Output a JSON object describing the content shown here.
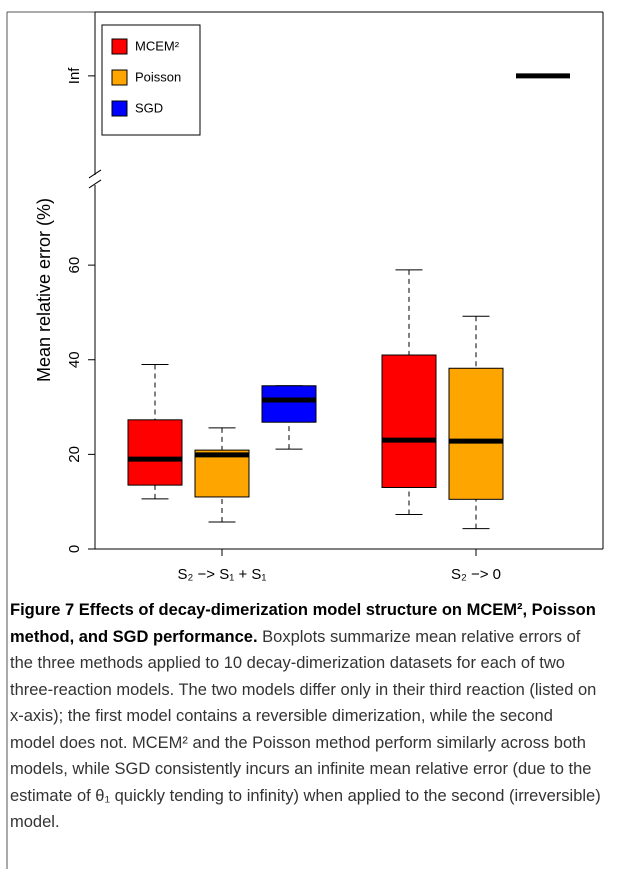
{
  "chart_data": {
    "type": "boxplot",
    "ylabel": "Mean relative error (%)",
    "categories": [
      "S₂ −> S₁ + S₁",
      "S₂ −> 0"
    ],
    "series": [
      {
        "name": "MCEM²",
        "color": "#ff0000",
        "boxes": [
          [
            10.6,
            13.5,
            19,
            27.3,
            39
          ],
          [
            7.3,
            13,
            23,
            41,
            59
          ]
        ]
      },
      {
        "name": "Poisson",
        "color": "#ffa500",
        "boxes": [
          [
            5.7,
            11,
            19.9,
            20.9,
            25.6
          ],
          [
            4.3,
            10.5,
            22.8,
            38.2,
            49.2
          ]
        ]
      },
      {
        "name": "SGD",
        "color": "#0000ff",
        "boxes": [
          [
            21.1,
            26.8,
            31.5,
            34.5,
            34.5
          ],
          [
            null,
            null,
            100,
            null,
            null
          ]
        ]
      }
    ],
    "ylim": [
      0,
      113.5
    ],
    "yticks": [
      0,
      20,
      40,
      60,
      {
        "value": 100,
        "label": "Inf"
      }
    ],
    "axis_break": 78,
    "legend": "top-left"
  },
  "caption": {
    "title": "Figure 7 Effects of decay-dimerization model structure on MCEM², Poisson method, and SGD performance.",
    "body": "Boxplots summarize mean relative errors of the three methods applied to 10 decay-dimerization datasets for each of two three-reaction models. The two models differ only in their third reaction (listed on x-axis); the first model contains a reversible dimerization, while the second model does not. MCEM² and the Poisson method perform similarly across both models, while SGD consistently incurs an infinite mean relative error (due to the estimate of θ₁ quickly tending to infinity) when applied to the second (irreversible) model."
  }
}
